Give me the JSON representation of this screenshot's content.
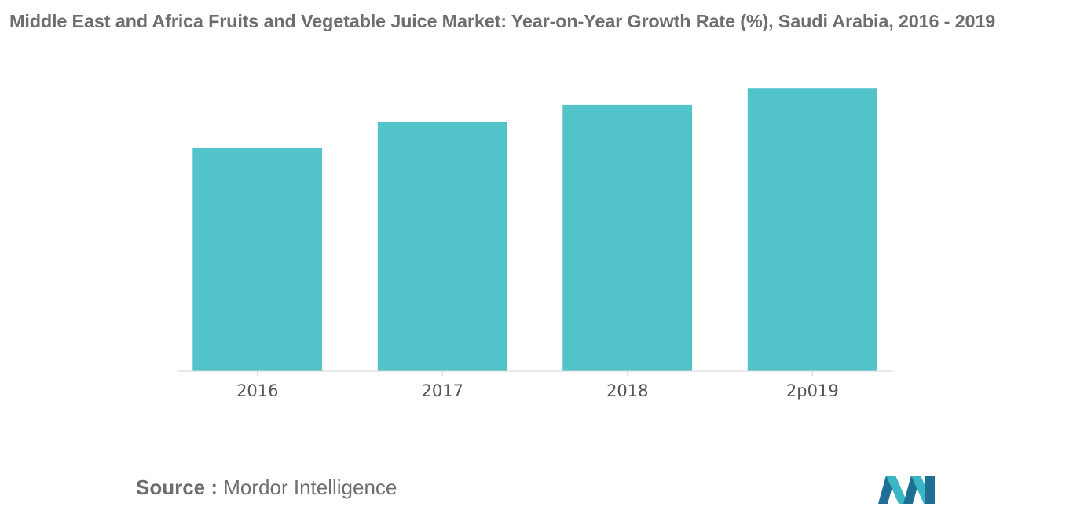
{
  "chart_data": {
    "type": "bar",
    "title": "Middle East and Africa Fruits and Vegetable Juice Market: Year-on-Year Growth Rate (%), Saudi Arabia, 2016 - 2019",
    "xlabel": "",
    "ylabel": "",
    "categories": [
      "2016",
      "2017",
      "2018",
      "2p019"
    ],
    "values": [
      7.9,
      8.8,
      9.4,
      10.0
    ],
    "ylim": [
      0,
      10.2
    ],
    "grid": false,
    "legend": "none",
    "bar_color": "#52c3c9"
  },
  "source": {
    "label": "Source :",
    "value": "Mordor Intelligence"
  },
  "logo": {
    "icon": "mordor-intelligence-logo-icon",
    "colors": [
      "#1f6f94",
      "#3ab6c4"
    ]
  }
}
